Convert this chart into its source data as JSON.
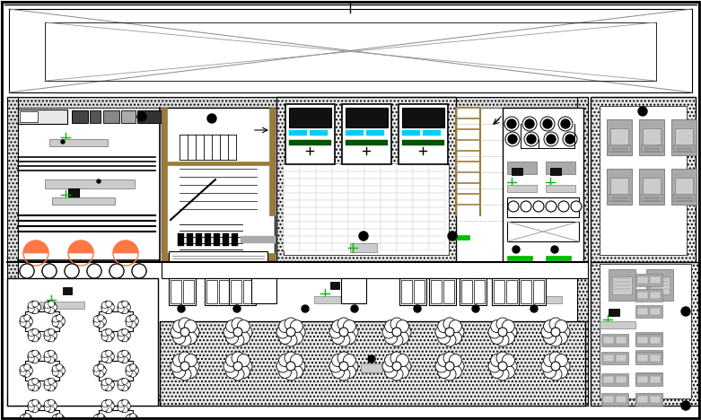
{
  "bg": "white",
  "black": "#000000",
  "gray": "#808080",
  "lgray": "#aaaaaa",
  "llgray": "#cccccc",
  "dgray": "#555555",
  "brown": "#9B7B3A",
  "cyan": "#00CCFF",
  "green": "#00BB00",
  "dkgreen": "#005500",
  "orange": "#FF7744",
  "hatch_gray": "#999999",
  "figsize": [
    7.81,
    4.68
  ],
  "dpi": 100
}
